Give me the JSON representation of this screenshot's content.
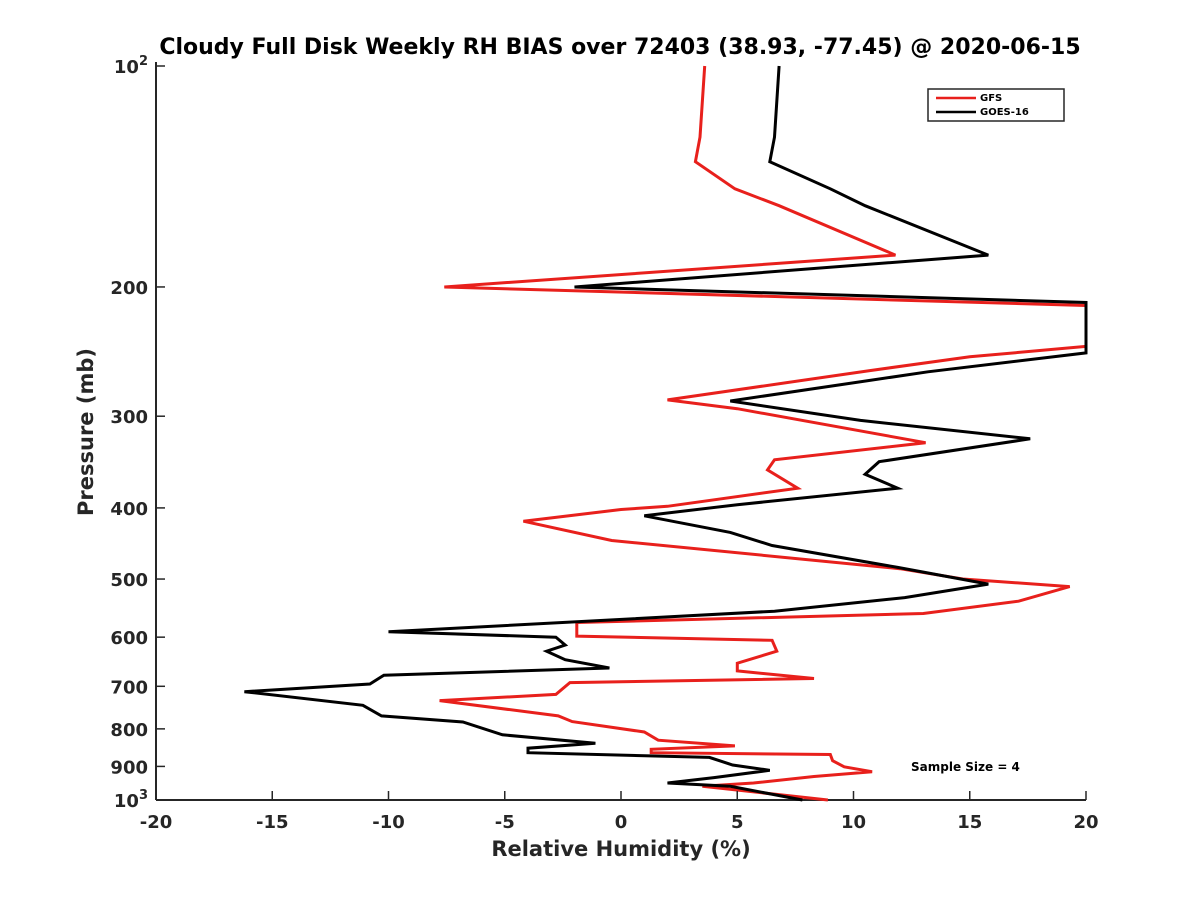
{
  "chart_data": {
    "type": "line",
    "title": "Cloudy Full Disk Weekly RH BIAS over 72403 (38.93, -77.45) @ 2020-06-15",
    "xlabel": "Relative Humidity (%)",
    "ylabel": "Pressure (mb)",
    "xlim": [
      -20,
      20
    ],
    "ylim": [
      100,
      1000
    ],
    "yscale": "log",
    "y_reversed": true,
    "x_ticks": [
      "-20",
      "-15",
      "-10",
      "-5",
      "0",
      "5",
      "10",
      "15",
      "20"
    ],
    "y_ticks": [
      {
        "value": 100,
        "base": "10",
        "exp": "2"
      },
      {
        "value": 200,
        "label": "200"
      },
      {
        "value": 300,
        "label": "300"
      },
      {
        "value": 400,
        "label": "400"
      },
      {
        "value": 500,
        "label": "500"
      },
      {
        "value": 600,
        "label": "600"
      },
      {
        "value": 700,
        "label": "700"
      },
      {
        "value": 800,
        "label": "800"
      },
      {
        "value": 900,
        "label": "900"
      },
      {
        "value": 1000,
        "base": "10",
        "exp": "3"
      }
    ],
    "grid": false,
    "legend_position": "top-right",
    "series": [
      {
        "name": "GFS",
        "color": "#e8201c",
        "points": [
          [
            3.6,
            100
          ],
          [
            3.4,
            125
          ],
          [
            3.2,
            135
          ],
          [
            4.9,
            147
          ],
          [
            6.8,
            155
          ],
          [
            11.8,
            181
          ],
          [
            -7.6,
            200
          ],
          [
            20.0,
            212
          ],
          [
            20.0,
            241
          ],
          [
            15.0,
            249
          ],
          [
            10.7,
            260
          ],
          [
            2.0,
            285
          ],
          [
            5.0,
            293
          ],
          [
            13.1,
            326
          ],
          [
            6.6,
            344
          ],
          [
            6.3,
            355
          ],
          [
            7.6,
            376
          ],
          [
            2.0,
            398
          ],
          [
            0.0,
            402
          ],
          [
            -4.2,
            417
          ],
          [
            -0.4,
            443
          ],
          [
            12.0,
            484
          ],
          [
            14.7,
            500
          ],
          [
            19.3,
            512
          ],
          [
            17.1,
            536
          ],
          [
            13.0,
            557
          ],
          [
            -1.9,
            573
          ],
          [
            -1.9,
            598
          ],
          [
            6.5,
            606
          ],
          [
            6.7,
            627
          ],
          [
            5.0,
            651
          ],
          [
            5.0,
            667
          ],
          [
            8.3,
            683
          ],
          [
            -2.2,
            692
          ],
          [
            -2.8,
            718
          ],
          [
            -7.8,
            732
          ],
          [
            -2.7,
            768
          ],
          [
            -2.1,
            782
          ],
          [
            1.0,
            808
          ],
          [
            1.6,
            829
          ],
          [
            4.9,
            844
          ],
          [
            1.3,
            853
          ],
          [
            1.3,
            862
          ],
          [
            9.0,
            867
          ],
          [
            9.1,
            884
          ],
          [
            9.6,
            901
          ],
          [
            10.8,
            915
          ],
          [
            8.3,
            929
          ],
          [
            5.7,
            948
          ],
          [
            3.5,
            958
          ],
          [
            8.9,
            1000
          ]
        ]
      },
      {
        "name": "GOES-16",
        "color": "#000000",
        "points": [
          [
            6.8,
            100
          ],
          [
            6.6,
            125
          ],
          [
            6.4,
            135
          ],
          [
            9.0,
            147
          ],
          [
            10.5,
            155
          ],
          [
            15.8,
            181
          ],
          [
            -2.0,
            200
          ],
          [
            20.0,
            210
          ],
          [
            20.0,
            246
          ],
          [
            13.2,
            261
          ],
          [
            4.7,
            286
          ],
          [
            10.3,
            304
          ],
          [
            17.6,
            322
          ],
          [
            11.1,
            346
          ],
          [
            10.5,
            360
          ],
          [
            11.9,
            376
          ],
          [
            5.0,
            396
          ],
          [
            1.0,
            410
          ],
          [
            4.7,
            432
          ],
          [
            6.5,
            450
          ],
          [
            11.9,
            482
          ],
          [
            15.8,
            508
          ],
          [
            12.2,
            530
          ],
          [
            6.6,
            553
          ],
          [
            -10.0,
            590
          ],
          [
            -2.8,
            600
          ],
          [
            -2.4,
            615
          ],
          [
            -3.2,
            627
          ],
          [
            -2.4,
            644
          ],
          [
            -0.5,
            661
          ],
          [
            -10.2,
            676
          ],
          [
            -10.8,
            695
          ],
          [
            -16.2,
            712
          ],
          [
            -11.1,
            743
          ],
          [
            -10.3,
            768
          ],
          [
            -6.8,
            783
          ],
          [
            -5.1,
            815
          ],
          [
            -1.1,
            837
          ],
          [
            -4.0,
            850
          ],
          [
            -4.0,
            862
          ],
          [
            3.8,
            875
          ],
          [
            4.8,
            896
          ],
          [
            6.4,
            911
          ],
          [
            4.0,
            932
          ],
          [
            2.0,
            948
          ],
          [
            4.7,
            958
          ],
          [
            7.8,
            1000
          ]
        ]
      }
    ],
    "annotation": "Sample Size = 4"
  }
}
